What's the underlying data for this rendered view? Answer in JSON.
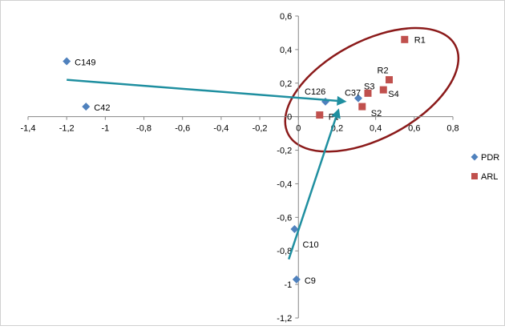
{
  "chart_data": {
    "type": "scatter",
    "xlim": [
      -1.4,
      0.8
    ],
    "ylim": [
      -1.2,
      0.6
    ],
    "x_ticks": [
      "-1,4",
      "-1,2",
      "-1",
      "-0,8",
      "-0,6",
      "-0,4",
      "-0,2",
      "0",
      "0,2",
      "0,4",
      "0,6",
      "0,8"
    ],
    "y_ticks": [
      "0,6",
      "0,4",
      "0,2",
      "0",
      "-0,2",
      "-0,4",
      "-0,6",
      "-0,8",
      "-1",
      "-1,2"
    ],
    "x_tick_values": [
      -1.4,
      -1.2,
      -1.0,
      -0.8,
      -0.6,
      -0.4,
      -0.2,
      0,
      0.2,
      0.4,
      0.6,
      0.8
    ],
    "y_tick_values": [
      0.6,
      0.4,
      0.2,
      0,
      -0.2,
      -0.4,
      -0.6,
      -0.8,
      -1.0,
      -1.2
    ],
    "legend_position": "right",
    "grid": false,
    "series": [
      {
        "name": "PDR",
        "marker": "diamond",
        "color": "#4F81BD",
        "points": [
          {
            "label": "C149",
            "x": -1.2,
            "y": 0.33
          },
          {
            "label": "C42",
            "x": -1.1,
            "y": 0.06
          },
          {
            "label": "C126",
            "x": 0.14,
            "y": 0.09
          },
          {
            "label": "C37",
            "x": 0.31,
            "y": 0.11
          },
          {
            "label": "C10",
            "x": -0.02,
            "y": -0.67
          },
          {
            "label": "C9",
            "x": -0.01,
            "y": -0.97
          }
        ]
      },
      {
        "name": "ARL",
        "marker": "square",
        "color": "#C0504D",
        "points": [
          {
            "label": "R1",
            "x": 0.55,
            "y": 0.46
          },
          {
            "label": "R2",
            "x": 0.47,
            "y": 0.22
          },
          {
            "label": "S3",
            "x": 0.36,
            "y": 0.14
          },
          {
            "label": "S4",
            "x": 0.44,
            "y": 0.16
          },
          {
            "label": "S2",
            "x": 0.33,
            "y": 0.06
          },
          {
            "label": "F1",
            "x": 0.11,
            "y": 0.01
          }
        ]
      }
    ],
    "annotations": {
      "ellipse": {
        "color": "#8B1A1A",
        "center": [
          0.38,
          0.16
        ],
        "rx": 0.49,
        "ry": 0.29
      },
      "arrows": [
        {
          "from": [
            -1.2,
            0.22
          ],
          "to": [
            0.25,
            0.09
          ],
          "color": "#1F8FA0"
        },
        {
          "from": [
            -0.05,
            -0.85
          ],
          "to": [
            0.21,
            0.05
          ],
          "color": "#1F8FA0"
        }
      ]
    }
  }
}
